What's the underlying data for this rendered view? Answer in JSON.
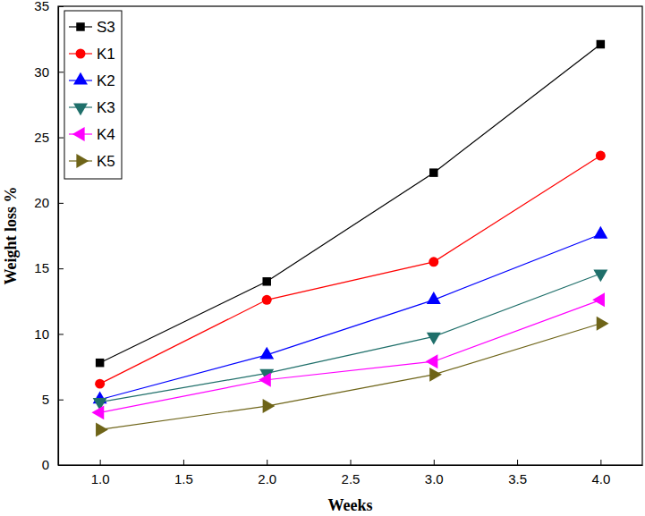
{
  "chart_data": {
    "type": "line",
    "x_label": "Weeks",
    "y_label": "Weight loss %",
    "x": [
      1,
      2,
      3,
      4
    ],
    "series": [
      {
        "name": "S3",
        "color": "#000000",
        "marker": "square",
        "values": [
          7.8,
          14.0,
          22.3,
          32.1
        ]
      },
      {
        "name": "K1",
        "color": "#ff0000",
        "marker": "circle",
        "values": [
          6.2,
          12.6,
          15.5,
          23.6
        ]
      },
      {
        "name": "K2",
        "color": "#0000ff",
        "marker": "triangle-up",
        "values": [
          5.0,
          8.4,
          12.6,
          17.6
        ]
      },
      {
        "name": "K3",
        "color": "#1f6f6a",
        "marker": "triangle-down",
        "values": [
          4.8,
          7.0,
          9.8,
          14.6
        ]
      },
      {
        "name": "K4",
        "color": "#ff00ff",
        "marker": "triangle-left",
        "values": [
          4.0,
          6.5,
          7.9,
          12.6
        ]
      },
      {
        "name": "K5",
        "color": "#6e6418",
        "marker": "triangle-right",
        "values": [
          2.7,
          4.5,
          6.9,
          10.8
        ]
      }
    ],
    "xlim": [
      0.75,
      4.25
    ],
    "xticks": [
      {
        "value": 1,
        "label": "1.0"
      },
      {
        "value": 1.5,
        "label": "1.5"
      },
      {
        "value": 2,
        "label": "2.0"
      },
      {
        "value": 2.5,
        "label": "2.5"
      },
      {
        "value": 3,
        "label": "3.0"
      },
      {
        "value": 3.5,
        "label": "3.5"
      },
      {
        "value": 4,
        "label": "4.0"
      }
    ],
    "ylim": [
      0,
      35
    ],
    "yticks": [
      0,
      5,
      10,
      15,
      20,
      25,
      30,
      35
    ],
    "grid": false,
    "legend": "upper left"
  }
}
